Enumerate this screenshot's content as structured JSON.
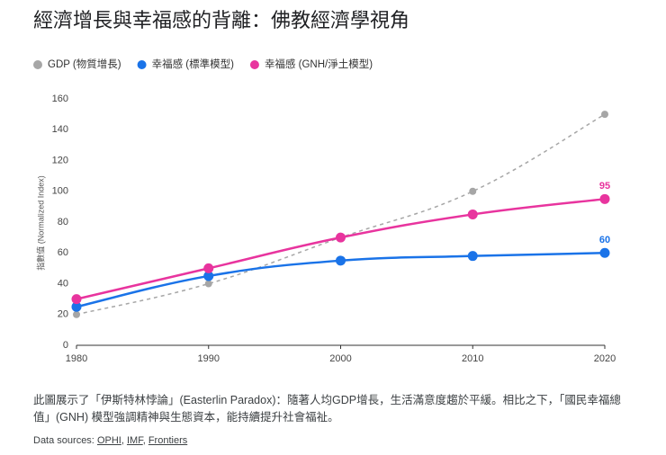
{
  "chart_data": {
    "type": "line",
    "title": "經濟增長與幸福感的背離：佛教經濟學視角",
    "y_label": "指數值 (Normalized Index)",
    "x": [
      1980,
      1990,
      2000,
      2010,
      2020
    ],
    "xlim": [
      1980,
      2020
    ],
    "xticks": [
      1980,
      1990,
      2000,
      2010,
      2020
    ],
    "ylim": [
      0,
      160
    ],
    "yticks": [
      0,
      20,
      40,
      60,
      80,
      100,
      120,
      140,
      160
    ],
    "grid": false,
    "legend": "top-left",
    "series": [
      {
        "name": "GDP (物質增長)",
        "color": "#a6a6a6",
        "values": [
          20,
          40,
          70,
          100,
          150
        ],
        "dashed": true,
        "end_label": false
      },
      {
        "name": "幸福感 (標準模型)",
        "color": "#1a73e8",
        "values": [
          25,
          45,
          55,
          58,
          60
        ],
        "dashed": false,
        "end_label": true
      },
      {
        "name": "幸福感 (GNH/淨土模型)",
        "color": "#e8349e",
        "values": [
          30,
          50,
          70,
          85,
          95
        ],
        "dashed": false,
        "end_label": true
      }
    ]
  },
  "footer": {
    "caption": "此圖展示了「伊斯特林悖論」(Easterlin Paradox)：隨著人均GDP增長，生活滿意度趨於平緩。相比之下，「國民幸福總值」(GNH) 模型強調精神與生態資本，能持續提升社會福祉。",
    "sources_label": "Data sources:",
    "sources": [
      "OPHI",
      "IMF",
      "Frontiers"
    ]
  }
}
